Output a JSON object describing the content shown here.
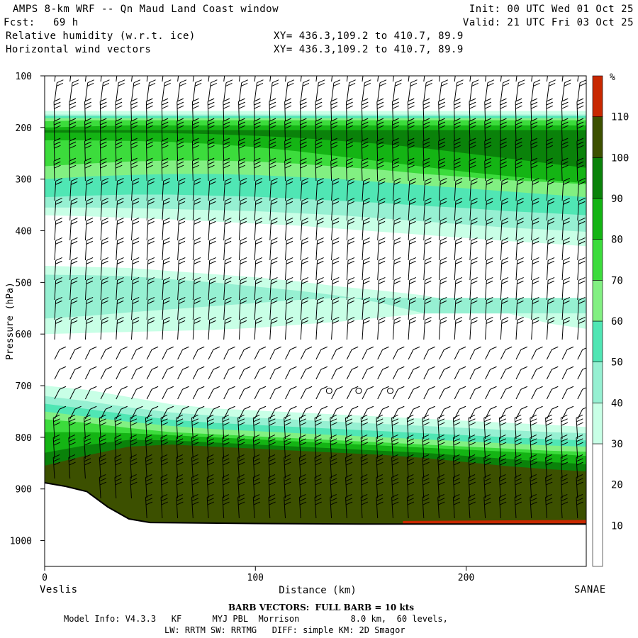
{
  "header": {
    "title": "AMPS 8-km WRF -- Qn Maud Land Coast window",
    "fcst_label": "Fcst:",
    "fcst_value": "69 h",
    "field1": "Relative humidity (w.r.t. ice)",
    "field2": "Horizontal wind vectors",
    "xy1": "XY= 436.3,109.2 to 410.7, 89.9",
    "xy2": "XY= 436.3,109.2 to 410.7, 89.9",
    "init": "Init: 00 UTC Wed 01 Oct 25",
    "valid": "Valid: 21 UTC Fri 03 Oct 25"
  },
  "footer": {
    "left_station": "Veslis",
    "right_station": "SANAE",
    "barb_note": "BARB VECTORS:  FULL BARB = 10 kts",
    "model_info": "Model Info: V4.3.3   KF      MYJ PBL  Morrison          8.0 km,  60 levels,",
    "model_info2": "LW: RRTM SW: RRTMG   DIFF: simple KM: 2D Smagor"
  },
  "chart_data": {
    "type": "heatmap",
    "title": "Relative humidity (w.r.t. ice)",
    "xlabel": "Distance (km)",
    "ylabel": "Pressure (hPa)",
    "xlim": [
      0,
      257
    ],
    "ylim": [
      100,
      1050
    ],
    "x_ticks": [
      0,
      100,
      200
    ],
    "y_ticks": [
      100,
      200,
      300,
      400,
      500,
      600,
      700,
      800,
      900,
      1000
    ],
    "colorbar": {
      "unit": "%",
      "ticks": [
        10,
        20,
        30,
        40,
        50,
        60,
        70,
        80,
        90,
        100,
        110
      ],
      "levels": [
        {
          "from": 0,
          "to": 30,
          "color": "#ffffff"
        },
        {
          "from": 30,
          "to": 40,
          "color": "#c8ffe6"
        },
        {
          "from": 40,
          "to": 50,
          "color": "#96f0d2"
        },
        {
          "from": 50,
          "to": 60,
          "color": "#50e6b4"
        },
        {
          "from": 60,
          "to": 70,
          "color": "#82f082"
        },
        {
          "from": 70,
          "to": 80,
          "color": "#3cdc3c"
        },
        {
          "from": 80,
          "to": 90,
          "color": "#14b414"
        },
        {
          "from": 90,
          "to": 100,
          "color": "#0a820a"
        },
        {
          "from": 100,
          "to": 110,
          "color": "#3c5000"
        },
        {
          "from": 110,
          "to": 120,
          "color": "#c82800"
        }
      ]
    },
    "terrain_surface_hPa": [
      {
        "x": 0,
        "p": 888
      },
      {
        "x": 10,
        "p": 895
      },
      {
        "x": 20,
        "p": 905
      },
      {
        "x": 30,
        "p": 935
      },
      {
        "x": 40,
        "p": 958
      },
      {
        "x": 50,
        "p": 965
      },
      {
        "x": 100,
        "p": 967
      },
      {
        "x": 150,
        "p": 968
      },
      {
        "x": 200,
        "p": 968
      },
      {
        "x": 257,
        "p": 968
      }
    ],
    "calm_markers": [
      {
        "x": 135,
        "p": 710
      },
      {
        "x": 149,
        "p": 710
      },
      {
        "x": 164,
        "p": 710
      }
    ]
  }
}
